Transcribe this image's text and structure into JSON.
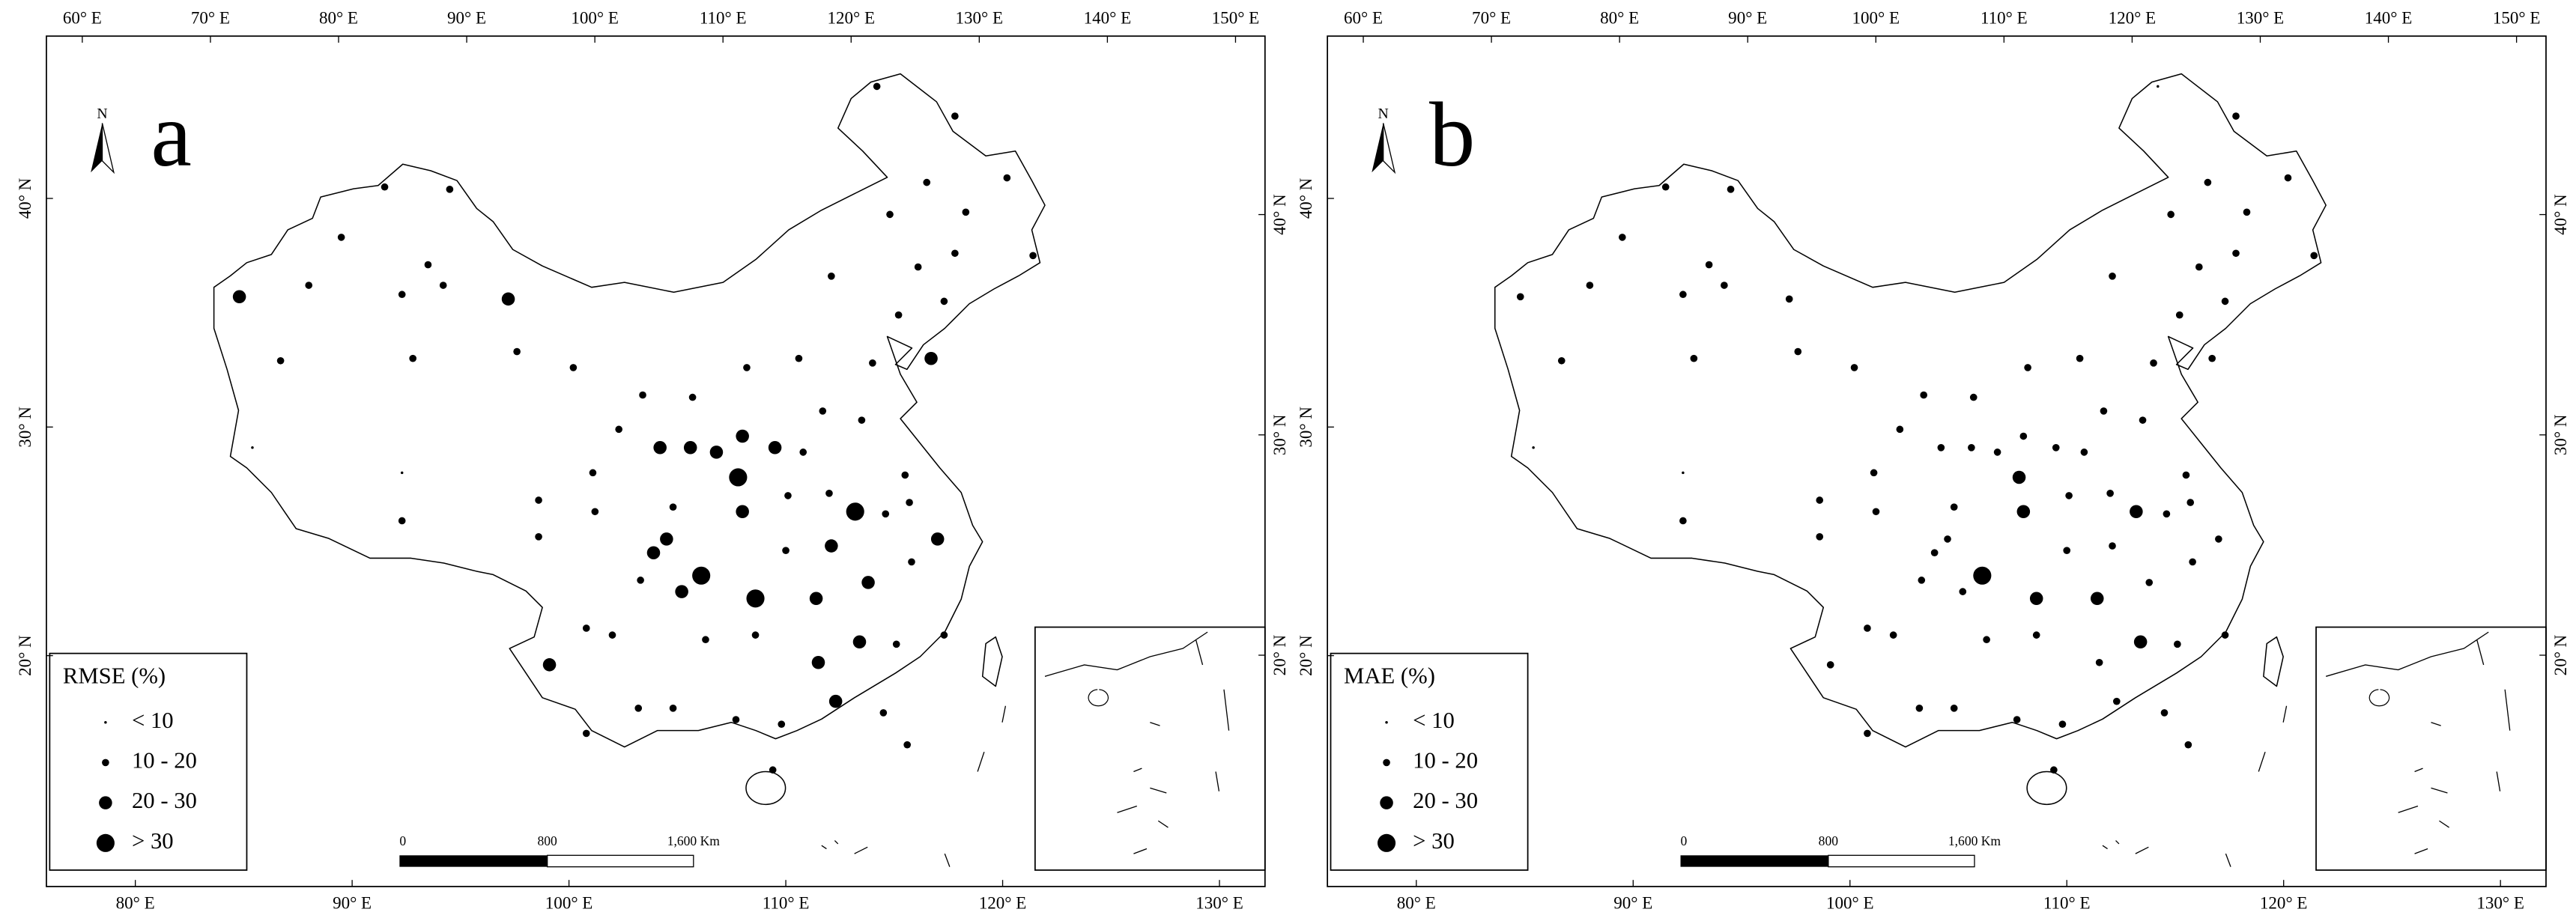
{
  "map": {
    "top_xlim": [
      57.2,
      152.3
    ],
    "top_xticks": [
      {
        "value": 60,
        "label": "60° E"
      },
      {
        "value": 70,
        "label": "70° E"
      },
      {
        "value": 80,
        "label": "80° E"
      },
      {
        "value": 90,
        "label": "90° E"
      },
      {
        "value": 100,
        "label": "100° E"
      },
      {
        "value": 110,
        "label": "110° E"
      },
      {
        "value": 120,
        "label": "120° E"
      },
      {
        "value": 130,
        "label": "130° E"
      },
      {
        "value": 140,
        "label": "140° E"
      },
      {
        "value": 150,
        "label": "150° E"
      }
    ],
    "bottom_xlim": [
      75.9,
      132.1
    ],
    "bottom_xticks": [
      {
        "value": 80,
        "label": "80° E"
      },
      {
        "value": 90,
        "label": "90° E"
      },
      {
        "value": 100,
        "label": "100° E"
      },
      {
        "value": 110,
        "label": "110° E"
      },
      {
        "value": 120,
        "label": "120° E"
      },
      {
        "value": 130,
        "label": "130° E"
      }
    ],
    "left_ylim": [
      9.9,
      47.1
    ],
    "left_yticks": [
      {
        "value": 20,
        "label": "20° N"
      },
      {
        "value": 30,
        "label": "30° N"
      },
      {
        "value": 40,
        "label": "40° N"
      }
    ],
    "right_ylim": [
      9.5,
      48.1
    ],
    "right_yticks": [
      {
        "value": 20,
        "label": "20° N"
      },
      {
        "value": 30,
        "label": "30° N"
      },
      {
        "value": 40,
        "label": "40° N"
      }
    ],
    "north": "N",
    "scale_bar": [
      "0",
      "800",
      "1,600 Km"
    ],
    "stations": [
      [
        114.2,
        44.9
      ],
      [
        117.8,
        43.6
      ],
      [
        120.2,
        40.9
      ],
      [
        116.5,
        40.7
      ],
      [
        118.3,
        39.4
      ],
      [
        114.8,
        39.3
      ],
      [
        121.4,
        37.5
      ],
      [
        117.8,
        37.6
      ],
      [
        116.1,
        37.0
      ],
      [
        117.3,
        35.5
      ],
      [
        115.2,
        34.9
      ],
      [
        114.0,
        32.8
      ],
      [
        116.7,
        33.0
      ],
      [
        112.1,
        36.6
      ],
      [
        110.6,
        33.0
      ],
      [
        108.2,
        32.6
      ],
      [
        105.7,
        31.3
      ],
      [
        103.4,
        31.4
      ],
      [
        100.2,
        32.6
      ],
      [
        97.2,
        35.6
      ],
      [
        97.6,
        33.3
      ],
      [
        94.5,
        40.4
      ],
      [
        93.5,
        37.1
      ],
      [
        94.2,
        36.2
      ],
      [
        92.3,
        35.8
      ],
      [
        91.5,
        40.5
      ],
      [
        89.5,
        38.3
      ],
      [
        88.0,
        36.2
      ],
      [
        84.8,
        35.7
      ],
      [
        86.7,
        32.9
      ],
      [
        92.8,
        33.0
      ],
      [
        104.2,
        29.1
      ],
      [
        102.3,
        29.9
      ],
      [
        105.6,
        29.1
      ],
      [
        106.8,
        28.9
      ],
      [
        107.8,
        27.8
      ],
      [
        108.0,
        29.6
      ],
      [
        109.5,
        29.1
      ],
      [
        110.8,
        28.9
      ],
      [
        113.5,
        30.3
      ],
      [
        111.7,
        30.7
      ],
      [
        101.1,
        28.0
      ],
      [
        98.6,
        26.8
      ],
      [
        101.2,
        26.3
      ],
      [
        104.8,
        26.5
      ],
      [
        108.0,
        26.3
      ],
      [
        110.1,
        27.0
      ],
      [
        112.0,
        27.1
      ],
      [
        113.2,
        26.3
      ],
      [
        114.6,
        26.2
      ],
      [
        115.7,
        26.7
      ],
      [
        117.0,
        25.1
      ],
      [
        115.5,
        27.9
      ],
      [
        98.6,
        25.2
      ],
      [
        92.3,
        25.9
      ],
      [
        104.5,
        25.1
      ],
      [
        103.9,
        24.5
      ],
      [
        103.3,
        23.3
      ],
      [
        106.1,
        23.5
      ],
      [
        105.2,
        22.8
      ],
      [
        108.6,
        22.5
      ],
      [
        111.4,
        22.5
      ],
      [
        112.1,
        24.8
      ],
      [
        110.0,
        24.6
      ],
      [
        113.8,
        23.2
      ],
      [
        115.8,
        24.1
      ],
      [
        108.6,
        20.9
      ],
      [
        106.3,
        20.7
      ],
      [
        113.4,
        20.6
      ],
      [
        111.5,
        19.7
      ],
      [
        115.1,
        20.5
      ],
      [
        117.3,
        20.9
      ],
      [
        100.8,
        21.2
      ],
      [
        102.0,
        20.9
      ],
      [
        99.1,
        19.6
      ],
      [
        103.2,
        17.7
      ],
      [
        104.8,
        17.7
      ],
      [
        107.7,
        17.2
      ],
      [
        112.3,
        18.0
      ],
      [
        114.5,
        17.5
      ],
      [
        100.8,
        16.6
      ],
      [
        109.8,
        17.0
      ],
      [
        115.6,
        16.1
      ],
      [
        109.4,
        15.0
      ],
      [
        85.4,
        29.1
      ],
      [
        92.3,
        28.0
      ]
    ]
  },
  "panels": [
    {
      "letter": "a",
      "legend_title": "RMSE (%)",
      "legend_items": [
        "< 10",
        "10 - 20",
        "20 - 30",
        "> 30"
      ],
      "classes": [
        1,
        1,
        1,
        1,
        1,
        1,
        1,
        1,
        1,
        1,
        1,
        1,
        2,
        1,
        1,
        1,
        1,
        1,
        1,
        2,
        1,
        1,
        1,
        1,
        1,
        1,
        1,
        1,
        2,
        1,
        1,
        2,
        1,
        2,
        2,
        3,
        2,
        2,
        1,
        1,
        1,
        1,
        1,
        1,
        1,
        2,
        1,
        1,
        3,
        1,
        1,
        2,
        1,
        1,
        1,
        2,
        2,
        1,
        3,
        2,
        3,
        2,
        2,
        1,
        2,
        1,
        1,
        1,
        2,
        2,
        1,
        1,
        1,
        1,
        2,
        1,
        1,
        1,
        2,
        1,
        1,
        1,
        1,
        1,
        0,
        0
      ]
    },
    {
      "letter": "b",
      "legend_title": "MAE (%)",
      "legend_items": [
        "< 10",
        "10 - 20",
        "20 - 30",
        "> 30"
      ],
      "classes": [
        0,
        1,
        1,
        1,
        1,
        1,
        1,
        1,
        1,
        1,
        1,
        1,
        1,
        1,
        1,
        1,
        1,
        1,
        1,
        1,
        1,
        1,
        1,
        1,
        1,
        1,
        1,
        1,
        1,
        1,
        1,
        1,
        1,
        1,
        1,
        2,
        1,
        1,
        1,
        1,
        1,
        1,
        1,
        1,
        1,
        2,
        1,
        1,
        2,
        1,
        1,
        1,
        1,
        1,
        1,
        1,
        1,
        1,
        3,
        1,
        2,
        2,
        1,
        1,
        1,
        1,
        1,
        1,
        2,
        1,
        1,
        1,
        1,
        1,
        1,
        1,
        1,
        1,
        1,
        1,
        1,
        1,
        1,
        1,
        0,
        0
      ]
    }
  ]
}
